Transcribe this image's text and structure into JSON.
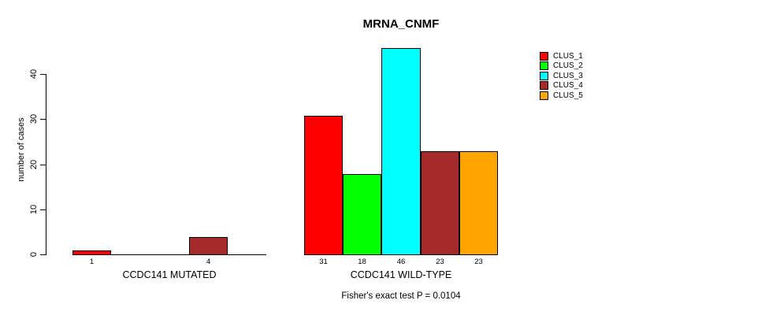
{
  "chart_data": {
    "type": "bar",
    "title": "MRNA_CNMF",
    "ylabel": "number of cases",
    "footnote": "Fisher's exact test P = 0.0104",
    "yticks": [
      0,
      10,
      20,
      30,
      40
    ],
    "ylim": [
      0,
      46
    ],
    "grid": false,
    "legend_position": "top-right",
    "bar_value_labels": "shown under each non-empty bar",
    "legend": [
      {
        "name": "CLUS_1",
        "color": "#FF0000"
      },
      {
        "name": "CLUS_2",
        "color": "#00FF00"
      },
      {
        "name": "CLUS_3",
        "color": "#00FFFF"
      },
      {
        "name": "CLUS_4",
        "color": "#A52A2A"
      },
      {
        "name": "CLUS_5",
        "color": "#FFA500"
      }
    ],
    "groups": [
      {
        "label": "CCDC141 MUTATED",
        "values": [
          1,
          0,
          0,
          4,
          0
        ]
      },
      {
        "label": "CCDC141 WILD-TYPE",
        "values": [
          31,
          18,
          46,
          23,
          23
        ]
      }
    ]
  }
}
